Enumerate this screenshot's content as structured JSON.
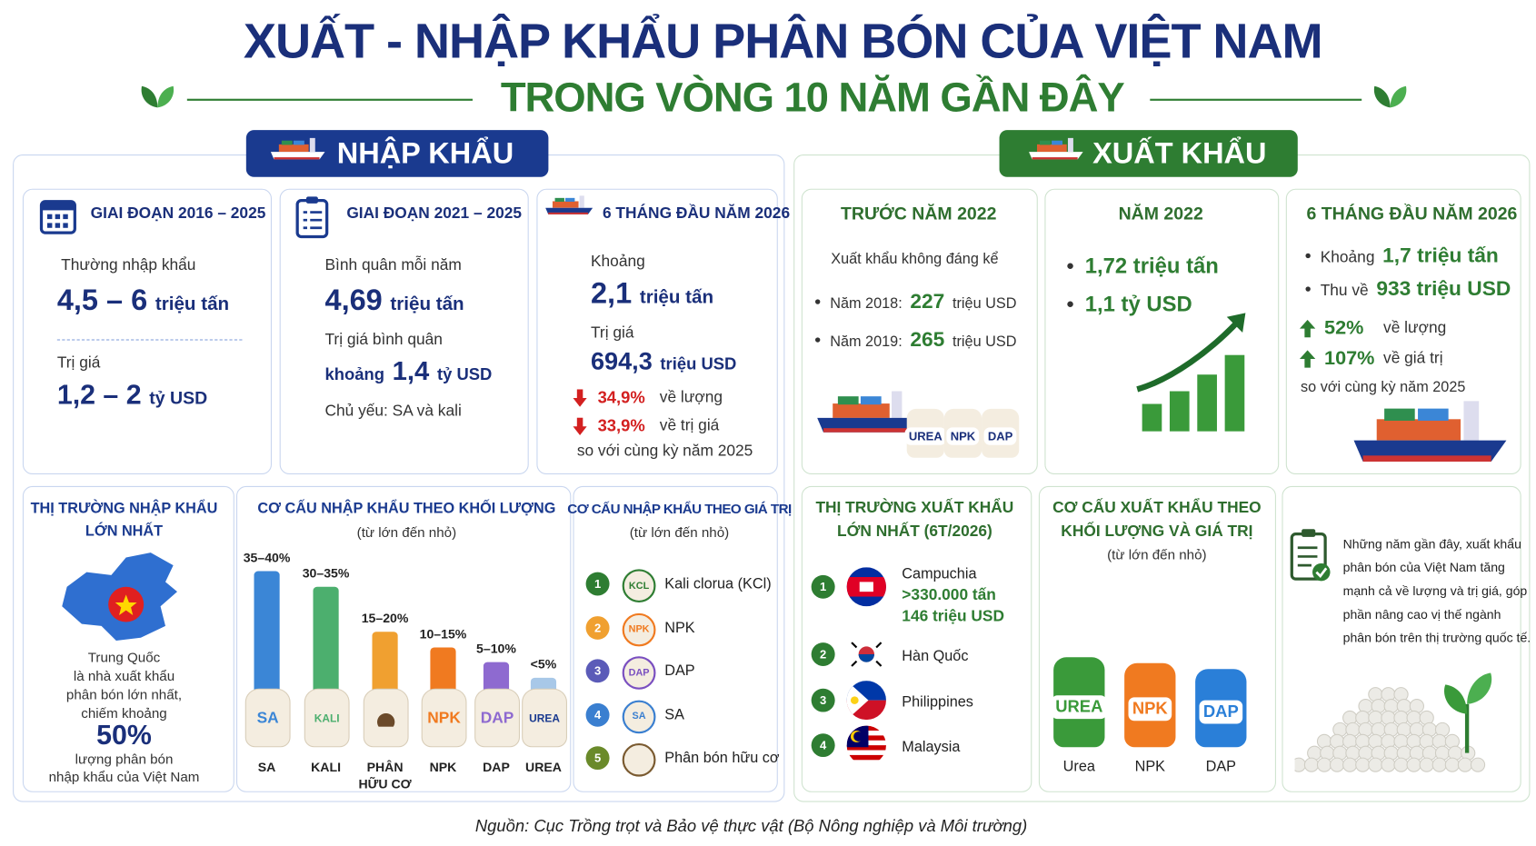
{
  "header": {
    "title": "XUẤT - NHẬP KHẨU PHÂN BÓN CỦA VIỆT NAM",
    "subtitle": "TRONG VÒNG 10 NĂM GẦN ĐÂY"
  },
  "import": {
    "title": "NHẬP KHẨU",
    "cards": [
      {
        "heading": "GIAI ĐOẠN 2016 – 2025",
        "label1": "Thường nhập khẩu",
        "value1": "4,5 – 6",
        "unit1": "triệu tấn",
        "label2": "Trị giá",
        "value2": "1,2 – 2",
        "unit2": "tỷ USD"
      },
      {
        "heading": "GIAI ĐOẠN 2021 – 2025",
        "label1": "Bình quân mỗi năm",
        "value1": "4,69",
        "unit1": "triệu tấn",
        "label2": "Trị giá bình quân",
        "prefix2": "khoảng",
        "value2": "1,4",
        "unit2": "tỷ USD",
        "note": "Chủ yếu: SA và kali"
      },
      {
        "heading": "6 THÁNG ĐẦU NĂM 2026",
        "label1": "Khoảng",
        "value1": "2,1",
        "unit1": "triệu tấn",
        "label2": "Trị giá",
        "value2": "694,3",
        "unit2": "triệu USD",
        "changes": [
          {
            "value": "34,9%",
            "label": "về lượng"
          },
          {
            "value": "33,9%",
            "label": "về trị giá"
          }
        ],
        "note": "so với cùng kỳ năm 2025"
      }
    ],
    "market": {
      "heading": [
        "THỊ TRƯỜNG NHẬP KHẨU",
        "LỚN NHẤT"
      ],
      "lines": [
        "Trung Quốc",
        "là nhà xuất khẩu",
        "phân bón lớn nhất,",
        "chiếm khoảng"
      ],
      "share": "50%",
      "lines_after": [
        "lượng phân bón",
        "nhập khẩu của Việt Nam"
      ]
    },
    "volume_chart": {
      "type": "bar",
      "title": "CƠ CẤU NHẬP KHẨU THEO KHỐI LƯỢNG",
      "subtitle": "(từ lớn đến nhỏ)",
      "categories": [
        "SA",
        "KALI",
        "PHÂN HỮU CƠ",
        "NPK",
        "DAP",
        "UREA"
      ],
      "bag_labels": [
        "SA",
        "KALI",
        null,
        "NPK",
        "DAP",
        "UREA"
      ],
      "values": [
        40,
        35,
        20,
        15,
        10,
        5
      ],
      "value_labels": [
        "35–40%",
        "30–35%",
        "15–20%",
        "10–15%",
        "5–10%",
        "<5%"
      ],
      "colors": [
        "#3b86d6",
        "#4caf6e",
        "#f0a030",
        "#f07a20",
        "#8e6ad0",
        "#a8c8e8"
      ]
    },
    "value_list": {
      "title": "CƠ CẤU NHẬP KHẨU THEO GIÁ TRỊ",
      "subtitle": "(từ lớn đến nhỏ)",
      "items": [
        {
          "rank": 1,
          "icon": "KCL",
          "name": "Kali clorua (KCl)"
        },
        {
          "rank": 2,
          "icon": "NPK",
          "name": "NPK"
        },
        {
          "rank": 3,
          "icon": "DAP",
          "name": "DAP"
        },
        {
          "rank": 4,
          "icon": "SA",
          "name": "SA"
        },
        {
          "rank": 5,
          "icon": null,
          "name": "Phân bón hữu cơ"
        }
      ]
    }
  },
  "export": {
    "title": "XUẤT KHẨU",
    "before_2022": {
      "heading": "TRƯỚC NĂM 2022",
      "note": "Xuất khẩu không đáng kể",
      "items": [
        {
          "label": "Năm 2018:",
          "value": "227",
          "unit": "triệu USD"
        },
        {
          "label": "Năm 2019:",
          "value": "265",
          "unit": "triệu USD"
        }
      ],
      "bags": [
        "UREA",
        "NPK",
        "DAP"
      ]
    },
    "year_2022": {
      "heading": "NĂM 2022",
      "items": [
        "1,72 triệu tấn",
        "1,1 tỷ USD"
      ]
    },
    "h1_2026": {
      "heading": "6 THÁNG ĐẦU NĂM 2026",
      "items": [
        {
          "label": "Khoảng",
          "value": "1,7 triệu tấn"
        },
        {
          "label": "Thu về",
          "value": "933 triệu USD"
        }
      ],
      "changes": [
        {
          "value": "52%",
          "label": "về lượng"
        },
        {
          "value": "107%",
          "label": "về giá trị"
        }
      ],
      "note": "so với cùng kỳ năm 2025"
    },
    "markets": {
      "heading": [
        "THỊ TRƯỜNG XUẤT KHẨU",
        "LỚN NHẤT (6T/2026)"
      ],
      "items": [
        {
          "rank": 1,
          "name": "Campuchia",
          "details": [
            ">330.000 tấn",
            "146 triệu USD"
          ]
        },
        {
          "rank": 2,
          "name": "Hàn Quốc"
        },
        {
          "rank": 3,
          "name": "Philippines"
        },
        {
          "rank": 4,
          "name": "Malaysia"
        }
      ]
    },
    "structure": {
      "heading": [
        "CƠ CẤU XUẤT KHẨU THEO",
        "KHỐI LƯỢNG VÀ GIÁ TRỊ"
      ],
      "subtitle": "(từ lớn đến nhỏ)",
      "bags": [
        {
          "label": "UREA",
          "name": "Urea"
        },
        {
          "label": "NPK",
          "name": "NPK"
        },
        {
          "label": "DAP",
          "name": "DAP"
        }
      ]
    },
    "summary": [
      "Những năm gần đây, xuất khẩu",
      "phân bón của Việt Nam  tăng",
      "mạnh cả về lượng và trị giá, góp",
      "phần nâng cao vị thế ngành",
      "phân bón trên thị trường quốc tế."
    ]
  },
  "source": "Nguồn: Cục Trồng trọt và Bảo vệ thực vật (Bộ Nông nghiệp và Môi trường)"
}
